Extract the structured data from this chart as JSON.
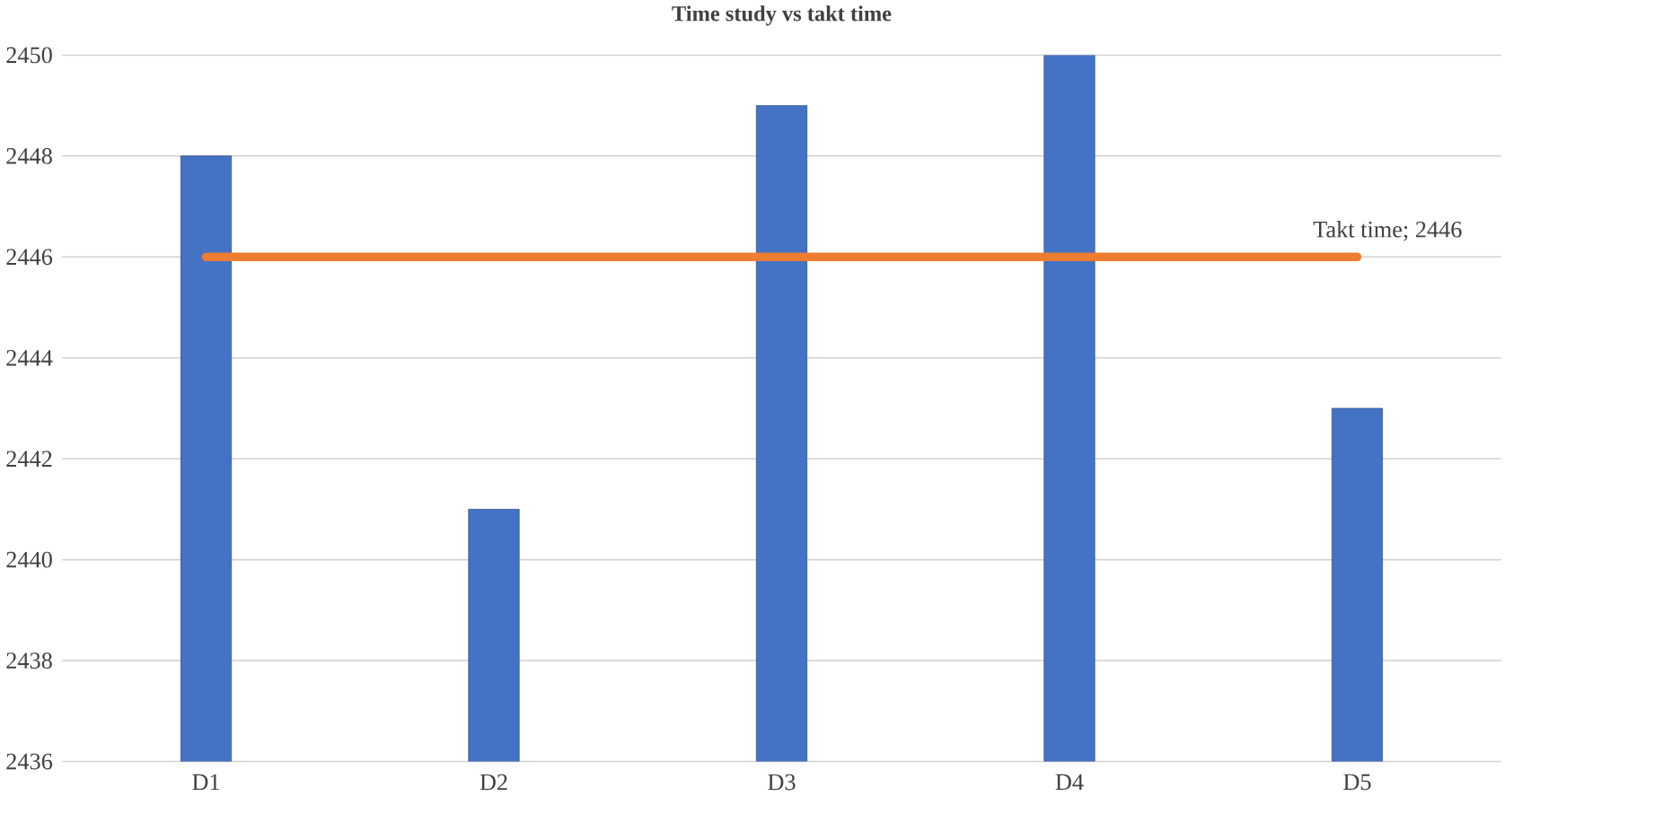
{
  "chart_data": {
    "type": "bar",
    "title": "Time study vs takt time",
    "categories": [
      "D1",
      "D2",
      "D3",
      "D4",
      "D5"
    ],
    "series": [
      {
        "color": "#4472c4",
        "values": [
          2448,
          2441,
          2449,
          2450,
          2443
        ]
      },
      {
        "type": "line",
        "color": "#ed7d31",
        "values": [
          2446,
          2446,
          2446,
          2446,
          2446
        ]
      }
    ],
    "ylim": [
      2436,
      2450
    ],
    "yticks": [
      2436,
      2438,
      2440,
      2442,
      2444,
      2446,
      2448,
      2450
    ],
    "grid": "y",
    "annotations": [
      {
        "text": "Takt time; 2446",
        "x": "D5",
        "y": 2446
      }
    ]
  }
}
